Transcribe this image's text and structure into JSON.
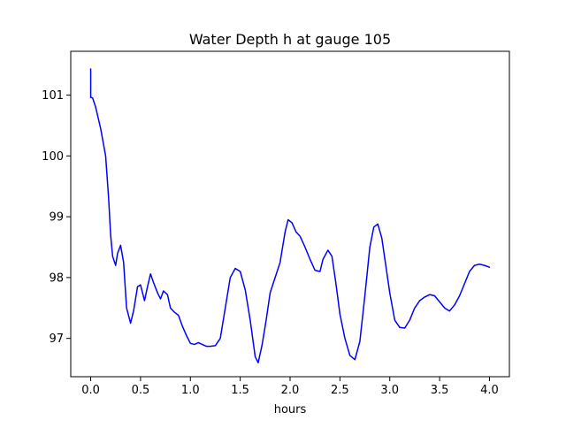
{
  "chart_data": {
    "type": "line",
    "title": "Water Depth h at gauge 105",
    "xlabel": "hours",
    "ylabel": "",
    "xlim": [
      -0.2,
      4.2
    ],
    "ylim": [
      96.37,
      101.72
    ],
    "grid": false,
    "xticks": [
      0.0,
      0.5,
      1.0,
      1.5,
      2.0,
      2.5,
      3.0,
      3.5,
      4.0
    ],
    "xtick_labels": [
      "0.0",
      "0.5",
      "1.0",
      "1.5",
      "2.0",
      "2.5",
      "3.0",
      "3.5",
      "4.0"
    ],
    "yticks": [
      97,
      98,
      99,
      100,
      101
    ],
    "ytick_labels": [
      "97",
      "98",
      "99",
      "100",
      "101"
    ],
    "series": [
      {
        "color": "#0000ff",
        "x": [
          0.0,
          0.0,
          0.0,
          0.02,
          0.05,
          0.1,
          0.15,
          0.18,
          0.2,
          0.22,
          0.25,
          0.27,
          0.3,
          0.33,
          0.36,
          0.4,
          0.43,
          0.47,
          0.5,
          0.54,
          0.57,
          0.6,
          0.63,
          0.67,
          0.7,
          0.73,
          0.77,
          0.8,
          0.84,
          0.88,
          0.92,
          0.96,
          1.0,
          1.04,
          1.08,
          1.12,
          1.16,
          1.2,
          1.25,
          1.3,
          1.35,
          1.4,
          1.45,
          1.5,
          1.55,
          1.6,
          1.65,
          1.68,
          1.72,
          1.76,
          1.8,
          1.85,
          1.9,
          1.95,
          1.98,
          2.02,
          2.06,
          2.1,
          2.15,
          2.2,
          2.25,
          2.3,
          2.33,
          2.38,
          2.42,
          2.46,
          2.5,
          2.55,
          2.6,
          2.65,
          2.7,
          2.75,
          2.8,
          2.84,
          2.88,
          2.92,
          2.96,
          3.0,
          3.05,
          3.1,
          3.15,
          3.2,
          3.25,
          3.3,
          3.35,
          3.4,
          3.45,
          3.5,
          3.55,
          3.6,
          3.65,
          3.7,
          3.75,
          3.8,
          3.85,
          3.9,
          3.95,
          4.0
        ],
        "y": [
          101.43,
          100.96,
          100.97,
          100.95,
          100.8,
          100.45,
          100.0,
          99.3,
          98.7,
          98.35,
          98.2,
          98.4,
          98.53,
          98.25,
          97.5,
          97.25,
          97.45,
          97.85,
          97.88,
          97.62,
          97.85,
          98.06,
          97.92,
          97.75,
          97.65,
          97.78,
          97.72,
          97.5,
          97.43,
          97.38,
          97.2,
          97.05,
          96.92,
          96.9,
          96.93,
          96.9,
          96.87,
          96.87,
          96.88,
          97.0,
          97.5,
          98.0,
          98.15,
          98.1,
          97.8,
          97.3,
          96.7,
          96.6,
          96.9,
          97.3,
          97.75,
          98.0,
          98.25,
          98.75,
          98.95,
          98.9,
          98.75,
          98.68,
          98.5,
          98.3,
          98.12,
          98.1,
          98.3,
          98.45,
          98.35,
          97.9,
          97.4,
          97.0,
          96.72,
          96.65,
          96.95,
          97.7,
          98.5,
          98.83,
          98.88,
          98.65,
          98.2,
          97.75,
          97.3,
          97.18,
          97.17,
          97.3,
          97.5,
          97.62,
          97.68,
          97.72,
          97.7,
          97.6,
          97.5,
          97.45,
          97.55,
          97.7,
          97.9,
          98.1,
          98.2,
          98.22,
          98.2,
          98.17
        ]
      }
    ]
  }
}
